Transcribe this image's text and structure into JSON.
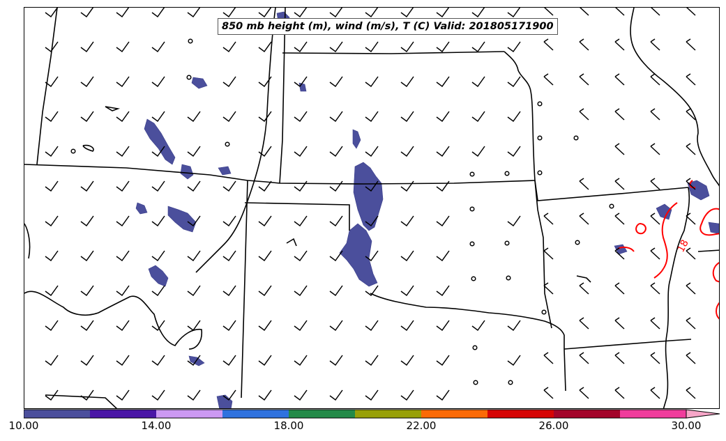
{
  "title": "850 mb height (m), wind (m/s), T (C) Valid: 201805171900",
  "colorbar": {
    "colors": [
      "#4b4f9c",
      "#4a16a6",
      "#cc99f2",
      "#2f72de",
      "#238a48",
      "#98a008",
      "#fb6a06",
      "#d60404",
      "#a3042a",
      "#f03c9c",
      "#f7a6c8"
    ],
    "tick_labels": [
      "10.00",
      "14.00",
      "18.00",
      "22.00",
      "26.00",
      "30.00"
    ],
    "extend": "max"
  },
  "contour_label": "18",
  "colors": {
    "boundary": "#000000",
    "contour": "#ff0000",
    "barb": "#000000"
  }
}
